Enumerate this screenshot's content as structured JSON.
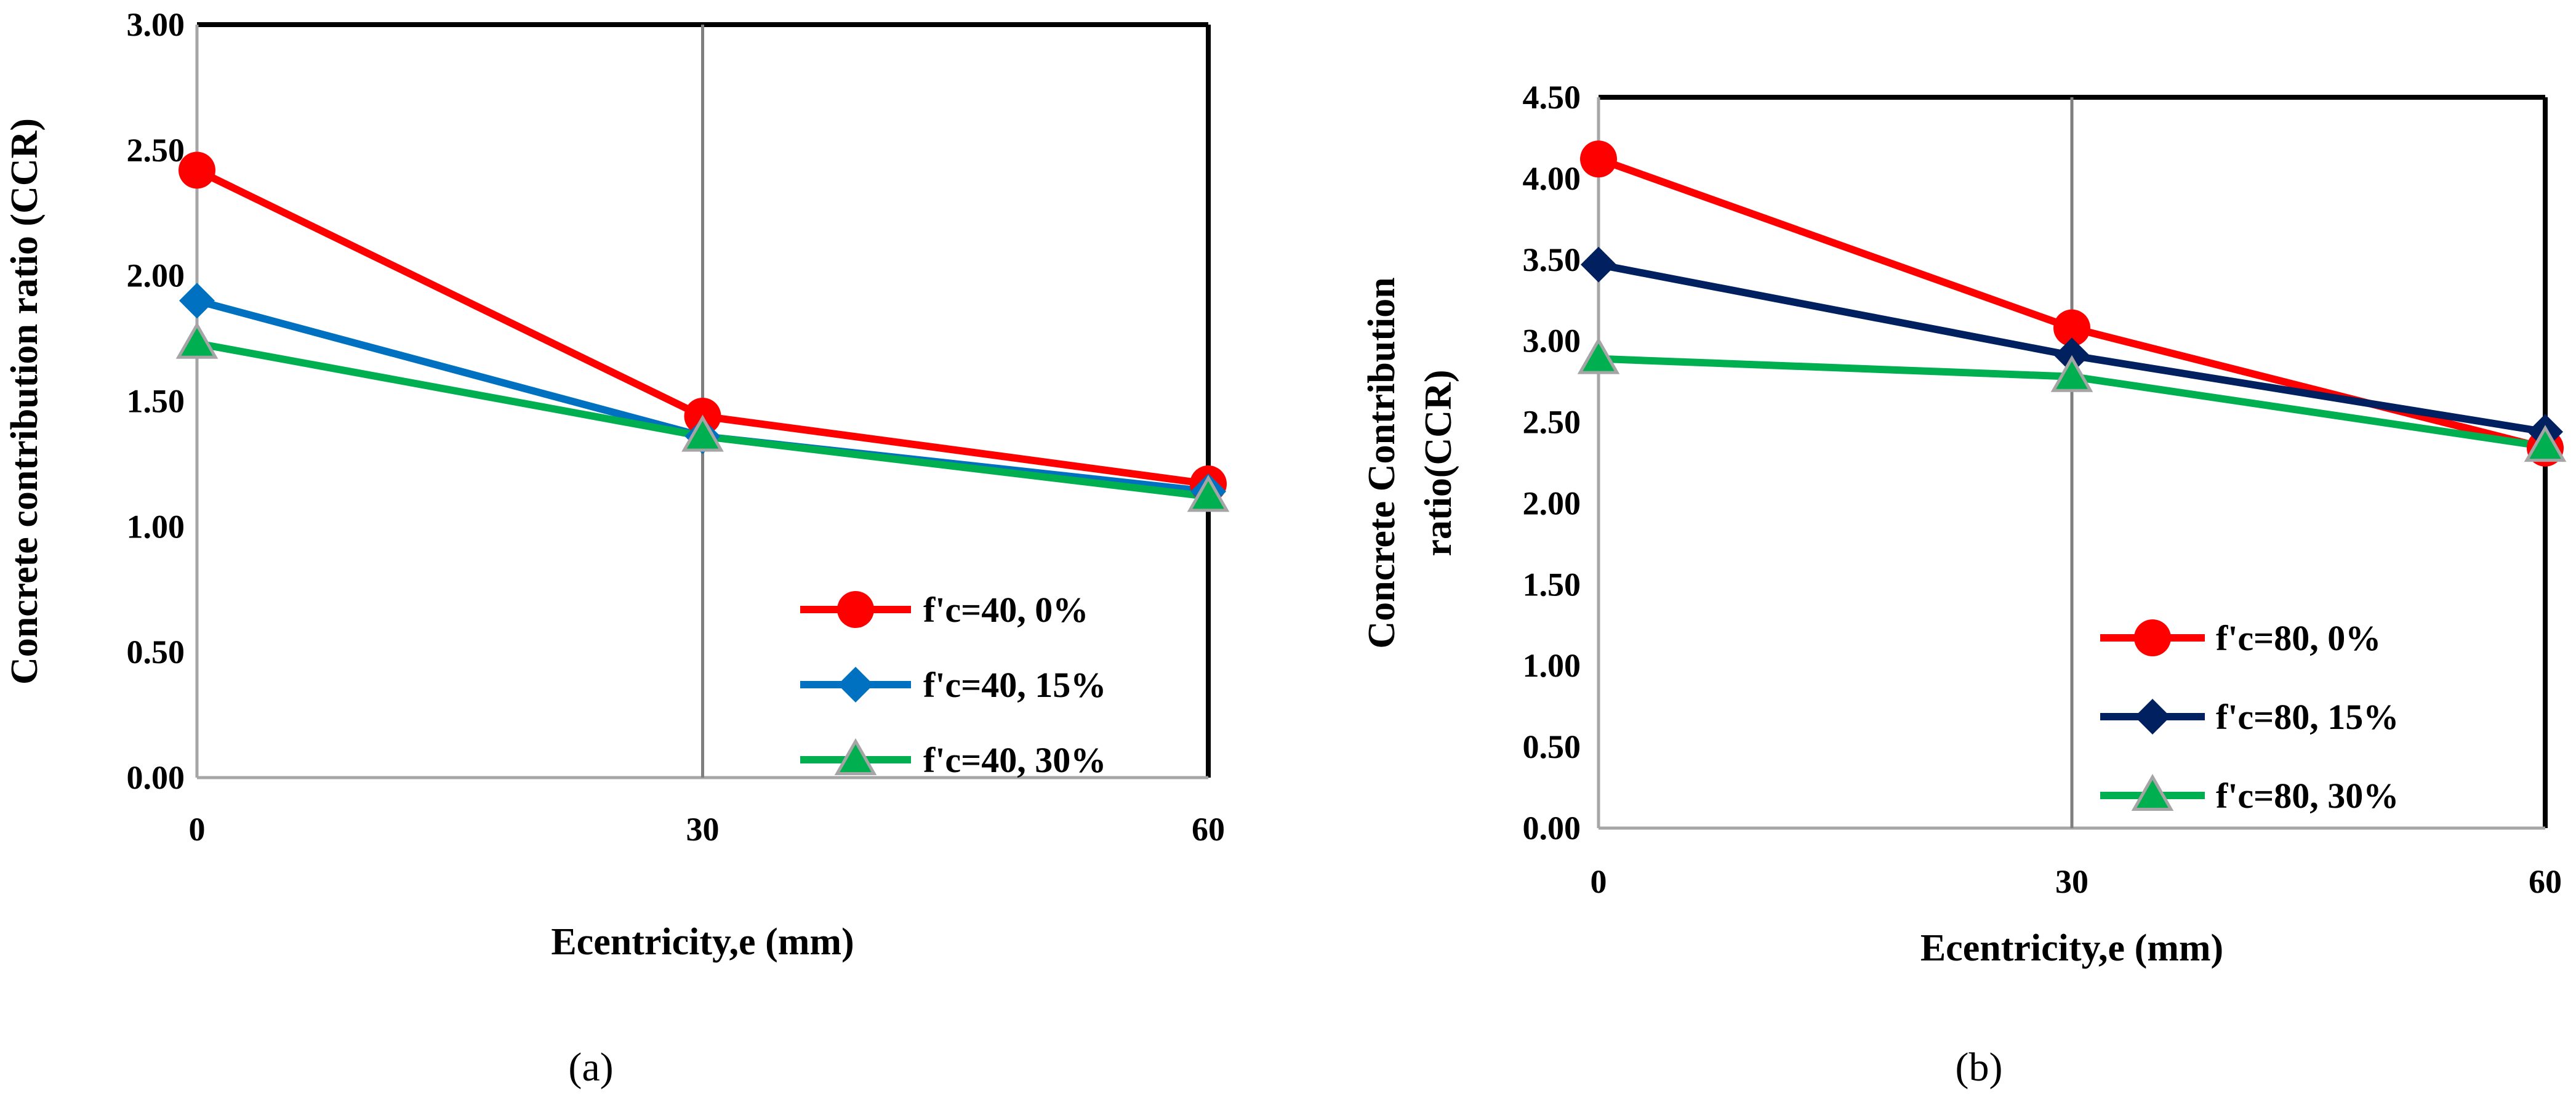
{
  "chart_data": [
    {
      "type": "line",
      "caption": "(a)",
      "x": [
        0,
        30,
        60
      ],
      "xlabel": "Ecentricity,e (mm)",
      "ylabel": "Concrete contribution ratio (CCR)",
      "ylim": [
        0,
        3
      ],
      "yticks": [
        "0.00",
        "0.50",
        "1.00",
        "1.50",
        "2.00",
        "2.50",
        "3.00"
      ],
      "xticks": [
        "0",
        "30",
        "60"
      ],
      "grid": "vertical",
      "legend_position": "bottom-right",
      "series": [
        {
          "name": "f'c=40, 0%",
          "values": [
            2.42,
            1.44,
            1.17
          ],
          "color": "#ff0000",
          "marker": "circle"
        },
        {
          "name": "f'c=40, 15%",
          "values": [
            1.9,
            1.36,
            1.14
          ],
          "color": "#0070c0",
          "marker": "diamond"
        },
        {
          "name": "f'c=40, 30%",
          "values": [
            1.73,
            1.36,
            1.12
          ],
          "color": "#00b050",
          "marker": "triangle"
        }
      ]
    },
    {
      "type": "line",
      "caption": "(b)",
      "x": [
        0,
        30,
        60
      ],
      "xlabel": "Ecentricity,e (mm)",
      "ylabel": [
        "Concrete Contribution",
        "ratio(CCR)"
      ],
      "ylim": [
        0,
        4.5
      ],
      "yticks": [
        "0.00",
        "0.50",
        "1.00",
        "1.50",
        "2.00",
        "2.50",
        "3.00",
        "3.50",
        "4.00",
        "4.50"
      ],
      "xticks": [
        "0",
        "30",
        "60"
      ],
      "grid": "vertical",
      "legend_position": "bottom-right",
      "series": [
        {
          "name": "f'c=80, 0%",
          "values": [
            4.12,
            3.08,
            2.34
          ],
          "color": "#ff0000",
          "marker": "circle"
        },
        {
          "name": "f'c=80, 15%",
          "values": [
            3.47,
            2.91,
            2.44
          ],
          "color": "#002060",
          "marker": "diamond"
        },
        {
          "name": "f'c=80, 30%",
          "values": [
            2.89,
            2.78,
            2.35
          ],
          "color": "#00b050",
          "marker": "triangle"
        }
      ]
    }
  ]
}
